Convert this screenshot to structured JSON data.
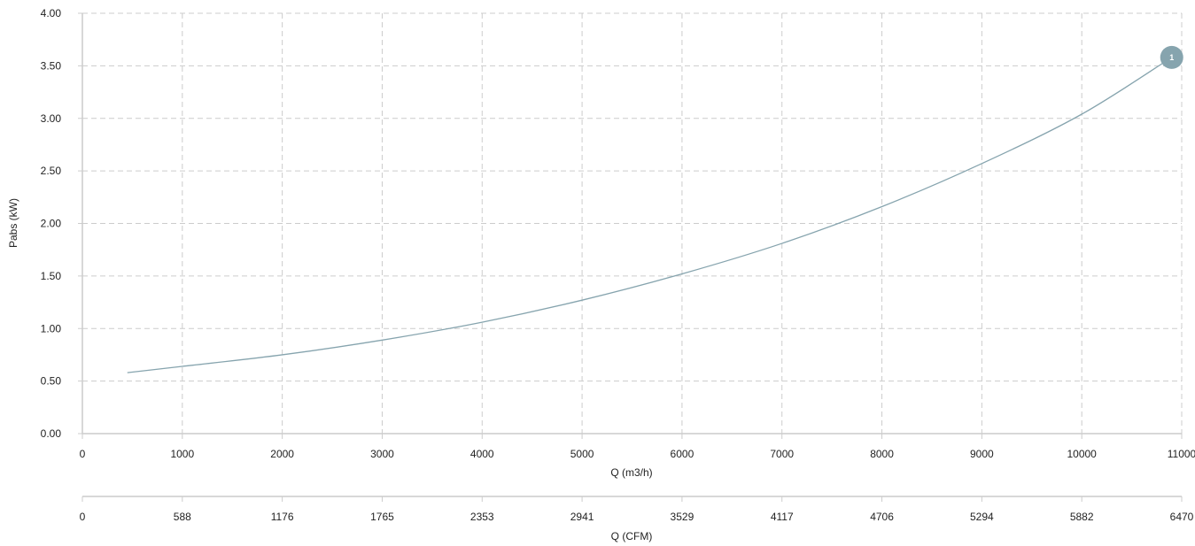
{
  "chart_data": {
    "type": "line",
    "ylabel": "Pabs (kW)",
    "xlabel": "Q (m3/h)",
    "xlabel_secondary": "Q (CFM)",
    "xlim": [
      0,
      11000
    ],
    "ylim": [
      0,
      4
    ],
    "grid": true,
    "x_ticks": [
      "0",
      "1000",
      "2000",
      "3000",
      "4000",
      "5000",
      "6000",
      "7000",
      "8000",
      "9000",
      "10000",
      "11000"
    ],
    "x_ticks_secondary": [
      "0",
      "588",
      "1176",
      "1765",
      "2353",
      "2941",
      "3529",
      "4117",
      "4706",
      "5294",
      "5882",
      "6470"
    ],
    "y_ticks": [
      "0.00",
      "0.50",
      "1.00",
      "1.50",
      "2.00",
      "2.50",
      "3.00",
      "3.50",
      "4.00"
    ],
    "series": [
      {
        "color": "#86a4ae",
        "x": [
          450,
          1000,
          2000,
          3000,
          4000,
          5000,
          6000,
          7000,
          8000,
          9000,
          10000,
          10900
        ],
        "y": [
          0.58,
          0.64,
          0.75,
          0.89,
          1.06,
          1.27,
          1.52,
          1.81,
          2.16,
          2.57,
          3.04,
          3.58
        ]
      }
    ],
    "markers": [
      {
        "label": "1",
        "x": 10900,
        "y": 3.58,
        "color": "#86a4ae"
      }
    ]
  }
}
